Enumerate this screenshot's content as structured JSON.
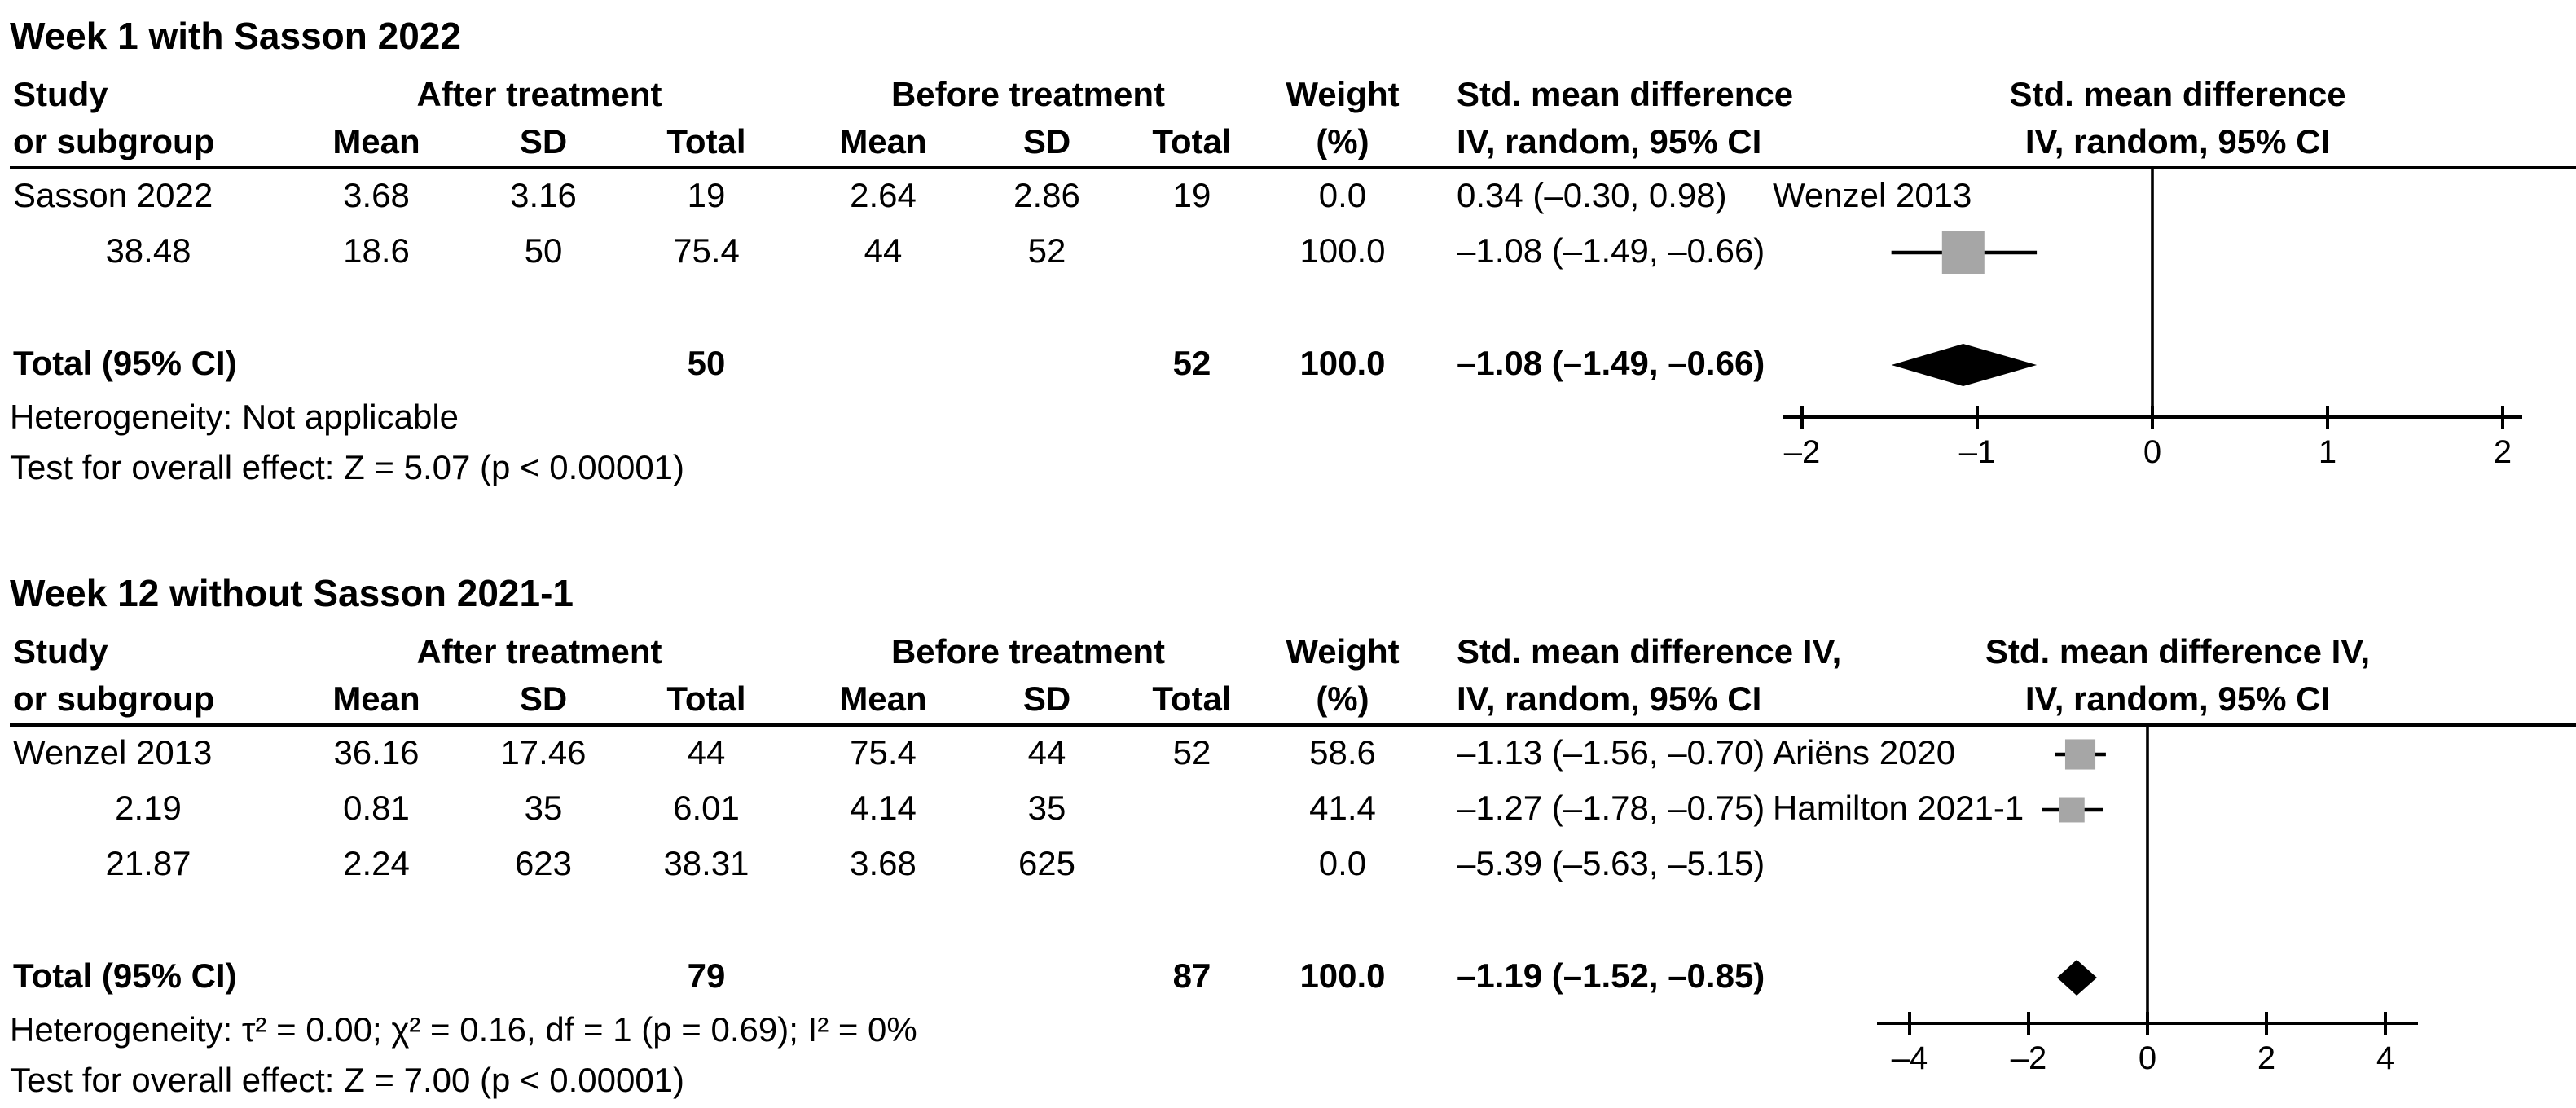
{
  "colors": {
    "square": "#a6a6a6",
    "diamond": "#000000",
    "line": "#000000"
  },
  "chart_data": [
    {
      "type": "forest",
      "title": "Week 1 with Sasson 2022",
      "header": {
        "study_l1": "Study",
        "study_l2": "or subgroup",
        "after_group": "After treatment",
        "before_group": "Before treatment",
        "mean": "Mean",
        "sd": "SD",
        "total": "Total",
        "weight_l1": "Weight",
        "weight_l2": "(%)",
        "smd_l1": "Std. mean difference",
        "smd_l2": "IV, random, 95% CI",
        "plot_l1": "Std. mean difference",
        "plot_l2": "IV, random, 95% CI"
      },
      "studies": [
        {
          "name": "Sasson 2022",
          "after_mean": "3.68",
          "after_sd": "3.16",
          "after_total": "19",
          "before_mean": "2.64",
          "before_sd": "2.86",
          "before_total": "19",
          "weight": "0.0",
          "smd": "0.34 (–0.30, 0.98)",
          "estimate": 0.34,
          "ci_low": -0.3,
          "ci_high": 0.98,
          "weight_value": 0
        },
        {
          "name": "Wenzel 2013",
          "after_mean": "38.48",
          "after_sd": "18.6",
          "after_total": "50",
          "before_mean": "75.4",
          "before_sd": "44",
          "before_total": "52",
          "weight": "100.0",
          "smd": "–1.08 (–1.49, –0.66)",
          "estimate": -1.08,
          "ci_low": -1.49,
          "ci_high": -0.66,
          "weight_value": 100
        }
      ],
      "total": {
        "label": "Total (95% CI)",
        "after_total": "50",
        "before_total": "52",
        "weight": "100.0",
        "smd": "–1.08 (–1.49, –0.66)",
        "estimate": -1.08,
        "ci_low": -1.49,
        "ci_high": -0.66
      },
      "heterogeneity": "Heterogeneity: Not applicable",
      "overall_test": "Test for overall effect: Z = 5.07 (p < 0.00001)",
      "axis": {
        "min": -2.2,
        "max": 2.2,
        "ticks": [
          {
            "v": -2,
            "label": "–2"
          },
          {
            "v": -1,
            "label": "–1"
          },
          {
            "v": 0,
            "label": "0"
          },
          {
            "v": 1,
            "label": "1"
          },
          {
            "v": 2,
            "label": "2"
          }
        ]
      }
    },
    {
      "type": "forest",
      "title": "Week 12 without Sasson 2021-1",
      "header": {
        "study_l1": "Study",
        "study_l2": "or subgroup",
        "after_group": "After treatment",
        "before_group": "Before treatment",
        "mean": "Mean",
        "sd": "SD",
        "total": "Total",
        "weight_l1": "Weight",
        "weight_l2": "(%)",
        "smd_l1": "Std. mean difference IV,",
        "smd_l2": "IV, random, 95% CI",
        "plot_l1": "Std. mean difference IV,",
        "plot_l2": "IV, random, 95% CI"
      },
      "studies": [
        {
          "name": "Wenzel 2013",
          "after_mean": "36.16",
          "after_sd": "17.46",
          "after_total": "44",
          "before_mean": "75.4",
          "before_sd": "44",
          "before_total": "52",
          "weight": "58.6",
          "smd": "–1.13 (–1.56, –0.70)",
          "estimate": -1.13,
          "ci_low": -1.56,
          "ci_high": -0.7,
          "weight_value": 58.6
        },
        {
          "name": "Ariëns 2020",
          "after_mean": "2.19",
          "after_sd": "0.81",
          "after_total": "35",
          "before_mean": "6.01",
          "before_sd": "4.14",
          "before_total": "35",
          "weight": "41.4",
          "smd": "–1.27 (–1.78, –0.75)",
          "estimate": -1.27,
          "ci_low": -1.78,
          "ci_high": -0.75,
          "weight_value": 41.4
        },
        {
          "name": "Hamilton 2021-1",
          "after_mean": "21.87",
          "after_sd": "2.24",
          "after_total": "623",
          "before_mean": "38.31",
          "before_sd": "3.68",
          "before_total": "625",
          "weight": "0.0",
          "smd": "–5.39 (–5.63, –5.15)",
          "estimate": -5.39,
          "ci_low": -5.63,
          "ci_high": -5.15,
          "weight_value": 0
        }
      ],
      "total": {
        "label": "Total (95% CI)",
        "after_total": "79",
        "before_total": "87",
        "weight": "100.0",
        "smd": "–1.19 (–1.52, –0.85)",
        "estimate": -1.19,
        "ci_low": -1.52,
        "ci_high": -0.85
      },
      "heterogeneity": "Heterogeneity: τ² = 0.00;  χ² = 0.16, df = 1 (p = 0.69); I² = 0%",
      "overall_test": "Test for overall effect: Z = 7.00 (p < 0.00001)",
      "axis": {
        "min": -4.5,
        "max": 4.5,
        "ticks": [
          {
            "v": -4,
            "label": "–4"
          },
          {
            "v": -2,
            "label": "–2"
          },
          {
            "v": 0,
            "label": "0"
          },
          {
            "v": 2,
            "label": "2"
          },
          {
            "v": 4,
            "label": "4"
          }
        ]
      }
    }
  ]
}
